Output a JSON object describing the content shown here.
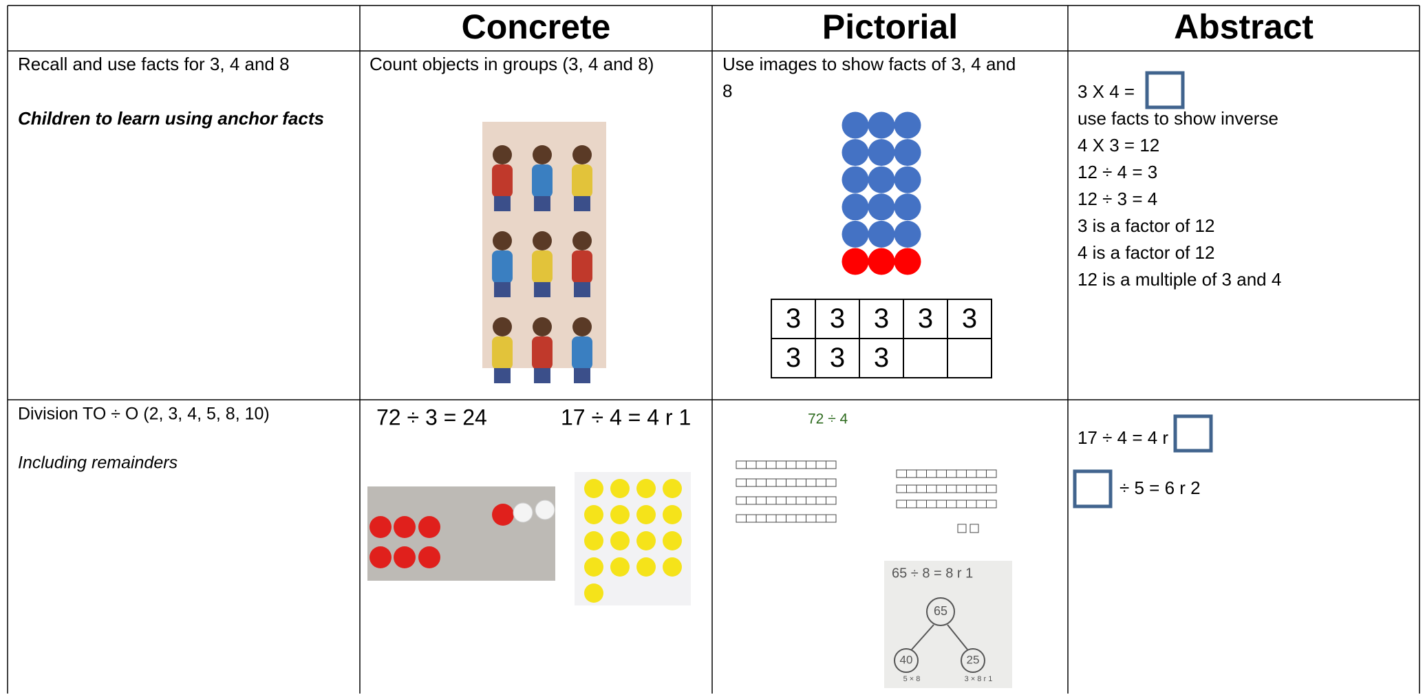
{
  "table": {
    "headers": [
      "Concrete",
      "Pictorial",
      "Abstract"
    ],
    "rows": [
      {
        "objective": "Recall and use facts for 3, 4 and 8",
        "note": "Children to learn using anchor facts",
        "concrete": {
          "text": "Count objects in groups (3, 4 and 8)"
        },
        "pictorial": {
          "text_line1": "Use images to show facts of 3, 4 and",
          "text_line2": "8",
          "grid": [
            "3",
            "3",
            "3",
            "3",
            "3",
            "3",
            "3",
            "3"
          ]
        },
        "abstract": {
          "prompt": "3 X 4 =",
          "lines": [
            "use facts to show inverse",
            "4 X 3 = 12",
            "12 ÷ 4 = 3",
            "12 ÷ 3 = 4",
            "3 is a factor of 12",
            "4 is a factor of 12",
            "12 is a multiple of 3 and 4"
          ]
        }
      },
      {
        "objective": "Division TO ÷ O  (2, 3, 4, 5, 8, 10)",
        "note": "Including remainders",
        "concrete": {
          "equations": [
            "72 ÷ 3 = 24",
            "17 ÷ 4 = 4 r 1"
          ]
        },
        "pictorial": {
          "label": "72 ÷ 4",
          "handwritten": {
            "equation": "65 ÷ 8 = 8 r 1",
            "whole": "65",
            "parts": [
              "40",
              "25"
            ],
            "part_notes": [
              "5 × 8",
              "3 × 8 r 1"
            ]
          }
        },
        "abstract": {
          "lines": [
            "17 ÷ 4 = 4 r",
            "÷ 5 = 6 r 2"
          ]
        }
      }
    ]
  }
}
